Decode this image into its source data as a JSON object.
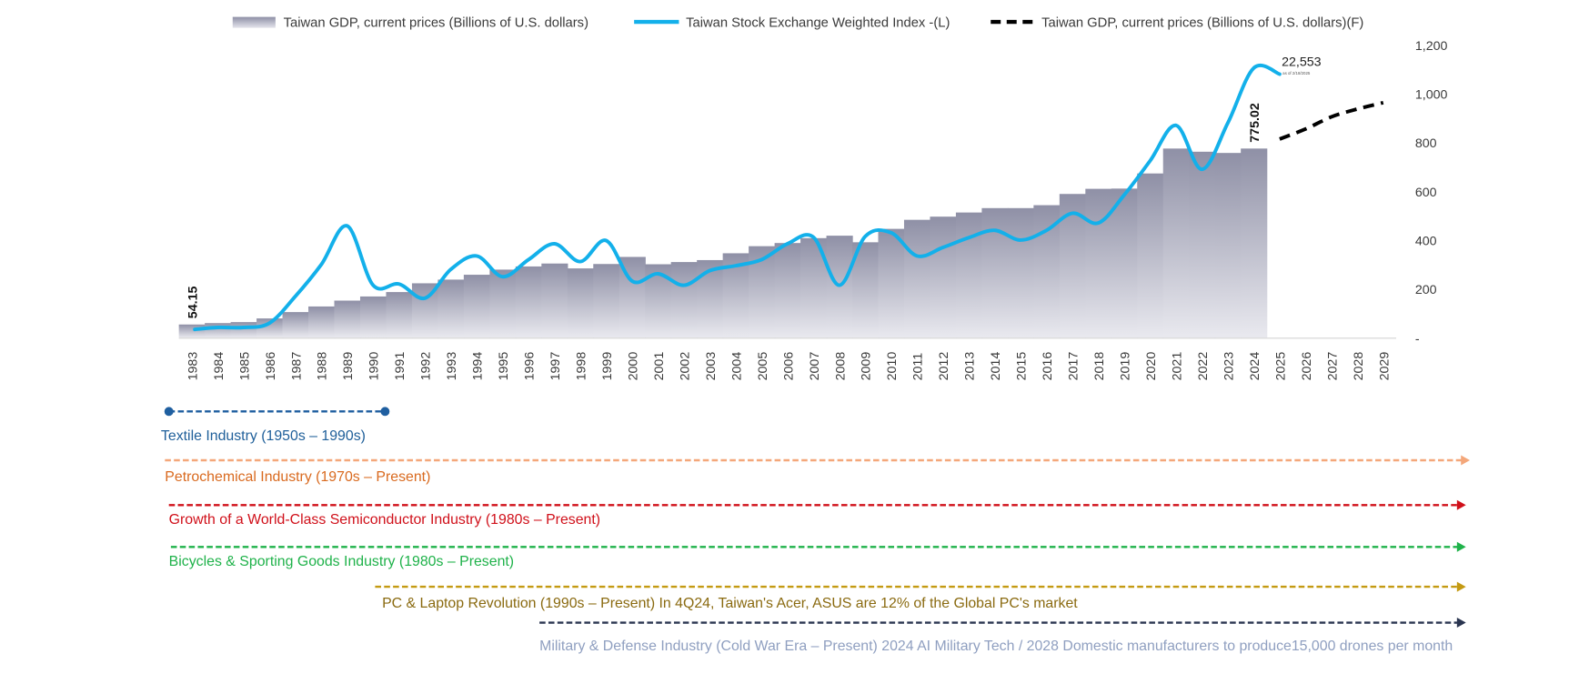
{
  "chart_data": {
    "type": "bar",
    "title": "",
    "xlabel": "",
    "ylabel": "",
    "ylim": [
      0,
      1200
    ],
    "y_ticks": [
      0,
      200,
      400,
      600,
      800,
      1000,
      1200
    ],
    "y_tick_labels": [
      "-",
      "200",
      "400",
      "600",
      "800",
      "1,000",
      "1,200"
    ],
    "y_axis_side": "right",
    "grid": false,
    "legend_position": "top",
    "categories": [
      "1983",
      "1984",
      "1985",
      "1986",
      "1987",
      "1988",
      "1989",
      "1990",
      "1991",
      "1992",
      "1993",
      "1994",
      "1995",
      "1996",
      "1997",
      "1998",
      "1999",
      "2000",
      "2001",
      "2002",
      "2003",
      "2004",
      "2005",
      "2006",
      "2007",
      "2008",
      "2009",
      "2010",
      "2011",
      "2012",
      "2013",
      "2014",
      "2015",
      "2016",
      "2017",
      "2018",
      "2019",
      "2020",
      "2021",
      "2022",
      "2023",
      "2024",
      "2025",
      "2026",
      "2027",
      "2028",
      "2029"
    ],
    "series": [
      {
        "name": "Taiwan GDP, current prices (Billions of U.S. dollars)",
        "type": "bar",
        "color": "#9a9bb0",
        "values": [
          54.15,
          60,
          64,
          79,
          105,
          128,
          152,
          169,
          187,
          223,
          238,
          258,
          279,
          292,
          304,
          284,
          302,
          331,
          301,
          310,
          318,
          346,
          375,
          388,
          408,
          418,
          391,
          446,
          483,
          496,
          513,
          531,
          531,
          543,
          589,
          610,
          611,
          673,
          775,
          762,
          757,
          775.02,
          null,
          null,
          null,
          null,
          null
        ]
      },
      {
        "name": "Taiwan Stock Exchange Weighted Index -(L)",
        "type": "line",
        "color": "#13b0ea",
        "values": [
          34,
          42,
          42,
          60,
          170,
          300,
          458,
          215,
          220,
          162,
          280,
          335,
          250,
          320,
          385,
          312,
          398,
          232,
          262,
          215,
          275,
          295,
          320,
          385,
          412,
          215,
          415,
          430,
          335,
          370,
          410,
          440,
          400,
          440,
          510,
          470,
          585,
          725,
          870,
          690,
          880,
          1105,
          1080,
          null,
          null,
          null,
          null
        ]
      },
      {
        "name": "Taiwan GDP, current prices (Billions of U.S. dollars)(F)",
        "type": "line",
        "dashed": true,
        "color": "#000000",
        "values": [
          null,
          null,
          null,
          null,
          null,
          null,
          null,
          null,
          null,
          null,
          null,
          null,
          null,
          null,
          null,
          null,
          null,
          null,
          null,
          null,
          null,
          null,
          null,
          null,
          null,
          null,
          null,
          null,
          null,
          null,
          null,
          null,
          null,
          null,
          null,
          null,
          null,
          null,
          null,
          null,
          null,
          null,
          814,
          855,
          905,
          937,
          963
        ]
      }
    ],
    "annotations": [
      {
        "category": "1983",
        "text": "54.15",
        "rotated": true
      },
      {
        "category": "2024",
        "text": "775.02",
        "rotated": true
      },
      {
        "category": "2025",
        "text": "22,553",
        "sub": "as of 2/18/2025"
      }
    ]
  },
  "timeline": [
    {
      "label": "Textile Industry (1950s – 1990s)",
      "color": "#1f5fa0",
      "label_color": "#1f5f9a",
      "style": "dots"
    },
    {
      "label": "Petrochemical Industry (1970s – Present)",
      "color": "#f4a77a",
      "label_color": "#d96a1f",
      "style": "arrow"
    },
    {
      "label": "Growth of a World-Class Semiconductor Industry (1980s – Present)",
      "color": "#d0101a",
      "label_color": "#d0101a",
      "style": "arrow"
    },
    {
      "label": "Bicycles & Sporting Goods Industry (1980s – Present)",
      "color": "#1fb24a",
      "label_color": "#1fb24a",
      "style": "arrow"
    },
    {
      "label": "PC & Laptop Revolution (1990s – Present) In 4Q24, Taiwan's Acer, ASUS are 12% of the Global PC's market",
      "color": "#c49a12",
      "label_color": "#8a6a10",
      "style": "arrow"
    },
    {
      "label": "Military & Defense Industry (Cold War Era – Present) 2024 AI Military Tech / 2028 Domestic manufacturers to produce15,000 drones per month",
      "color": "#2a3550",
      "label_color": "#8f9fc0",
      "style": "arrow"
    }
  ]
}
